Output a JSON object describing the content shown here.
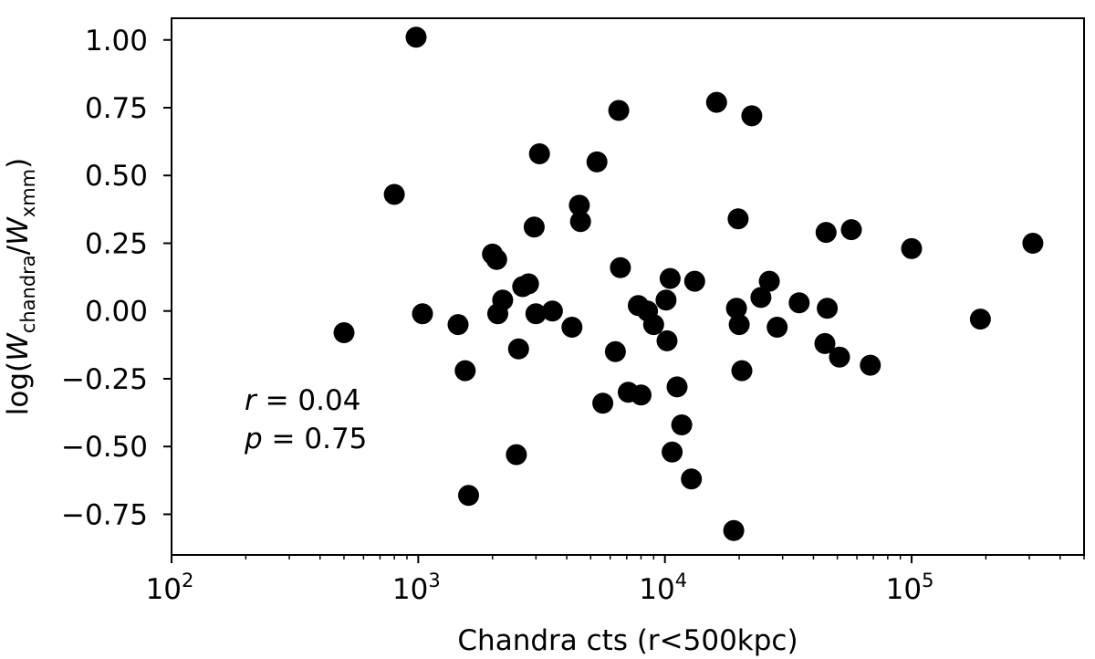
{
  "chart_data": {
    "type": "scatter",
    "title": "",
    "xlabel": "Chandra cts (r<500kpc)",
    "ylabel": {
      "prefix": "log(",
      "w1": "W",
      "sub1": "chandra",
      "slash": "/",
      "w2": "W",
      "sub2": "xmm",
      "suffix": ")"
    },
    "xscale": "log",
    "xlim": [
      100,
      500000
    ],
    "ylim": [
      -0.9,
      1.08
    ],
    "xticks": [
      {
        "value": 100,
        "base": "10",
        "exp": "2"
      },
      {
        "value": 1000,
        "base": "10",
        "exp": "3"
      },
      {
        "value": 10000,
        "base": "10",
        "exp": "4"
      },
      {
        "value": 100000,
        "base": "10",
        "exp": "5"
      }
    ],
    "yticks": [
      {
        "value": 1.0,
        "label": "1.00"
      },
      {
        "value": 0.75,
        "label": "0.75"
      },
      {
        "value": 0.5,
        "label": "0.50"
      },
      {
        "value": 0.25,
        "label": "0.25"
      },
      {
        "value": 0.0,
        "label": "0.00"
      },
      {
        "value": -0.25,
        "label": "−0.25"
      },
      {
        "value": -0.5,
        "label": "−0.50"
      },
      {
        "value": -0.75,
        "label": "−0.75"
      }
    ],
    "grid": false,
    "legend": "none",
    "marker_color": "#000000",
    "annotations": {
      "r": {
        "symbol": "r",
        "eq": " = 0.04"
      },
      "p": {
        "symbol": "p",
        "eq": " = 0.75"
      }
    },
    "points": [
      {
        "x": 500,
        "y": -0.08
      },
      {
        "x": 800,
        "y": 0.43
      },
      {
        "x": 980,
        "y": 1.01
      },
      {
        "x": 1040,
        "y": -0.01
      },
      {
        "x": 1450,
        "y": -0.05
      },
      {
        "x": 1550,
        "y": -0.22
      },
      {
        "x": 1600,
        "y": -0.68
      },
      {
        "x": 2000,
        "y": 0.21
      },
      {
        "x": 2080,
        "y": 0.19
      },
      {
        "x": 2100,
        "y": -0.01
      },
      {
        "x": 2200,
        "y": 0.04
      },
      {
        "x": 2500,
        "y": -0.53
      },
      {
        "x": 2550,
        "y": -0.14
      },
      {
        "x": 2650,
        "y": 0.09
      },
      {
        "x": 2800,
        "y": 0.1
      },
      {
        "x": 2950,
        "y": 0.31
      },
      {
        "x": 3000,
        "y": -0.01
      },
      {
        "x": 3100,
        "y": 0.58
      },
      {
        "x": 3500,
        "y": 0.0
      },
      {
        "x": 4200,
        "y": -0.06
      },
      {
        "x": 4500,
        "y": 0.39
      },
      {
        "x": 4550,
        "y": 0.33
      },
      {
        "x": 5300,
        "y": 0.55
      },
      {
        "x": 5600,
        "y": -0.34
      },
      {
        "x": 6300,
        "y": -0.15
      },
      {
        "x": 6500,
        "y": 0.74
      },
      {
        "x": 6600,
        "y": 0.16
      },
      {
        "x": 7100,
        "y": -0.3
      },
      {
        "x": 7800,
        "y": 0.02
      },
      {
        "x": 8000,
        "y": -0.31
      },
      {
        "x": 8500,
        "y": 0.0
      },
      {
        "x": 9000,
        "y": -0.05
      },
      {
        "x": 10100,
        "y": 0.04
      },
      {
        "x": 10200,
        "y": -0.11
      },
      {
        "x": 10500,
        "y": 0.12
      },
      {
        "x": 10700,
        "y": -0.52
      },
      {
        "x": 11200,
        "y": -0.28
      },
      {
        "x": 11700,
        "y": -0.42
      },
      {
        "x": 12800,
        "y": -0.62
      },
      {
        "x": 13200,
        "y": 0.11
      },
      {
        "x": 16200,
        "y": 0.77
      },
      {
        "x": 19000,
        "y": -0.81
      },
      {
        "x": 19500,
        "y": 0.01
      },
      {
        "x": 19800,
        "y": 0.34
      },
      {
        "x": 20000,
        "y": -0.05
      },
      {
        "x": 20500,
        "y": -0.22
      },
      {
        "x": 22500,
        "y": 0.72
      },
      {
        "x": 24500,
        "y": 0.05
      },
      {
        "x": 26500,
        "y": 0.11
      },
      {
        "x": 28500,
        "y": -0.06
      },
      {
        "x": 35000,
        "y": 0.03
      },
      {
        "x": 44500,
        "y": -0.12
      },
      {
        "x": 45000,
        "y": 0.29
      },
      {
        "x": 45500,
        "y": 0.01
      },
      {
        "x": 51000,
        "y": -0.17
      },
      {
        "x": 57000,
        "y": 0.3
      },
      {
        "x": 68000,
        "y": -0.2
      },
      {
        "x": 100000,
        "y": 0.23
      },
      {
        "x": 190000,
        "y": -0.03
      },
      {
        "x": 310000,
        "y": 0.25
      }
    ]
  }
}
